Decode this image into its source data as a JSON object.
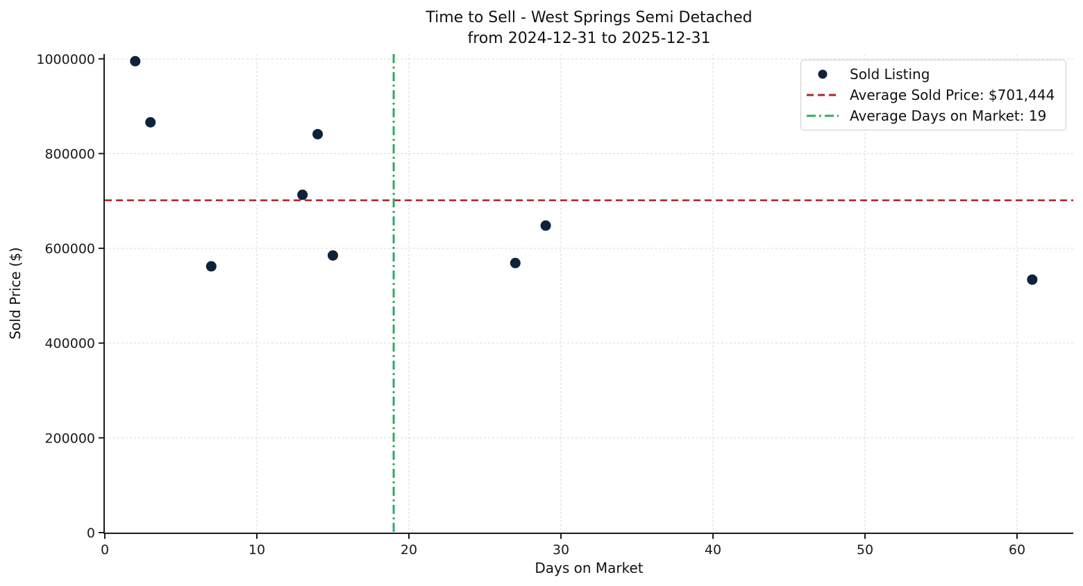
{
  "title": {
    "line1": "Time to Sell - West Springs Semi Detached",
    "line2": "from 2024-12-31 to 2025-12-31"
  },
  "axes": {
    "xlabel": "Days on Market",
    "ylabel": "Sold Price ($)"
  },
  "legend": {
    "position": "upper right",
    "items": [
      {
        "label": "Sold Listing",
        "marker": "dot"
      },
      {
        "label": "Average Sold Price: $701,444",
        "marker": "red-dashed-line"
      },
      {
        "label": "Average Days on Market: 19",
        "marker": "green-dashdot-line"
      }
    ]
  },
  "chart_data": {
    "type": "scatter",
    "title": "Time to Sell - West Springs Semi Detached",
    "subtitle": "from 2024-12-31 to 2025-12-31",
    "xlabel": "Days on Market",
    "ylabel": "Sold Price ($)",
    "xlim": [
      0,
      63.7
    ],
    "ylim": [
      0,
      1010000
    ],
    "x_ticks": [
      0,
      10,
      20,
      30,
      40,
      50,
      60
    ],
    "y_ticks": [
      0,
      200000,
      400000,
      600000,
      800000,
      1000000
    ],
    "grid": true,
    "legend_position": "upper right",
    "series": [
      {
        "name": "Sold Listing",
        "type": "scatter",
        "points": [
          {
            "days_on_market": 2,
            "sold_price": 995000
          },
          {
            "days_on_market": 3,
            "sold_price": 866000
          },
          {
            "days_on_market": 7,
            "sold_price": 562000
          },
          {
            "days_on_market": 13,
            "sold_price": 713000
          },
          {
            "days_on_market": 14,
            "sold_price": 841000
          },
          {
            "days_on_market": 15,
            "sold_price": 585000
          },
          {
            "days_on_market": 27,
            "sold_price": 569000
          },
          {
            "days_on_market": 29,
            "sold_price": 648000
          },
          {
            "days_on_market": 61,
            "sold_price": 534000
          }
        ]
      },
      {
        "name": "Average Sold Price: $701,444",
        "type": "hline",
        "value": 701444
      },
      {
        "name": "Average Days on Market: 19",
        "type": "vline",
        "value": 19
      }
    ],
    "colors": {
      "point": "#0d2339",
      "avg_price_line": "#b22727",
      "avg_days_line": "#2eab63",
      "grid": "#d9d9d9",
      "axis": "#1a1a1a"
    }
  }
}
